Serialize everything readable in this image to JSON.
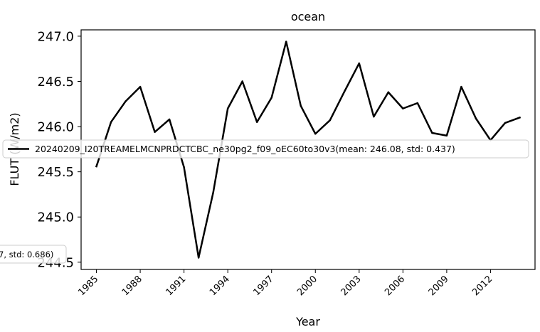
{
  "chart_data": {
    "type": "line",
    "title": "ocean",
    "xlabel": "Year",
    "ylabel": "FLUT (W/m2)",
    "xlim": [
      1983.95,
      2015.05
    ],
    "ylim": [
      244.42,
      247.07
    ],
    "xticks": [
      1985,
      1988,
      1991,
      1994,
      1997,
      2000,
      2003,
      2006,
      2009,
      2012
    ],
    "xtick_labels": [
      "1985",
      "1988",
      "1991",
      "1994",
      "1997",
      "2000",
      "2003",
      "2006",
      "2009",
      "2012"
    ],
    "yticks": [
      244.5,
      245.0,
      245.5,
      246.0,
      246.5,
      247.0
    ],
    "ytick_labels": [
      "244.5",
      "245.0",
      "245.5",
      "246.0",
      "246.5",
      "247.0"
    ],
    "grid": false,
    "series": [
      {
        "name": "20240209_I20TREAMELMCNPRDCTCBC_ne30pg2_f09_oEC60to30v3(mean: 246.08, std: 0.437)",
        "color": "#000000",
        "x": [
          1985,
          1986,
          1987,
          1988,
          1989,
          1990,
          1991,
          1992,
          1993,
          1994,
          1995,
          1996,
          1997,
          1998,
          1999,
          2000,
          2001,
          2002,
          2003,
          2004,
          2005,
          2006,
          2007,
          2008,
          2009,
          2010,
          2011,
          2012,
          2013,
          2014
        ],
        "y": [
          245.56,
          246.05,
          246.28,
          246.44,
          245.94,
          246.08,
          245.55,
          244.55,
          245.27,
          246.2,
          246.5,
          246.05,
          246.32,
          246.94,
          246.23,
          245.92,
          246.07,
          246.39,
          246.7,
          246.11,
          246.38,
          246.2,
          246.26,
          245.93,
          245.9,
          246.44,
          246.09,
          245.85,
          246.04,
          246.1
        ]
      }
    ],
    "legend": {
      "placement": "center-right",
      "entries": [
        "20240209_I20TREAMELMCNPRDCTCBC_ne30pg2_f09_oEC60to30v3(mean: 246.08, std: 0.437)"
      ]
    },
    "extra_legend": {
      "placement": "lower-left",
      "text": "7, std: 0.686)"
    }
  }
}
